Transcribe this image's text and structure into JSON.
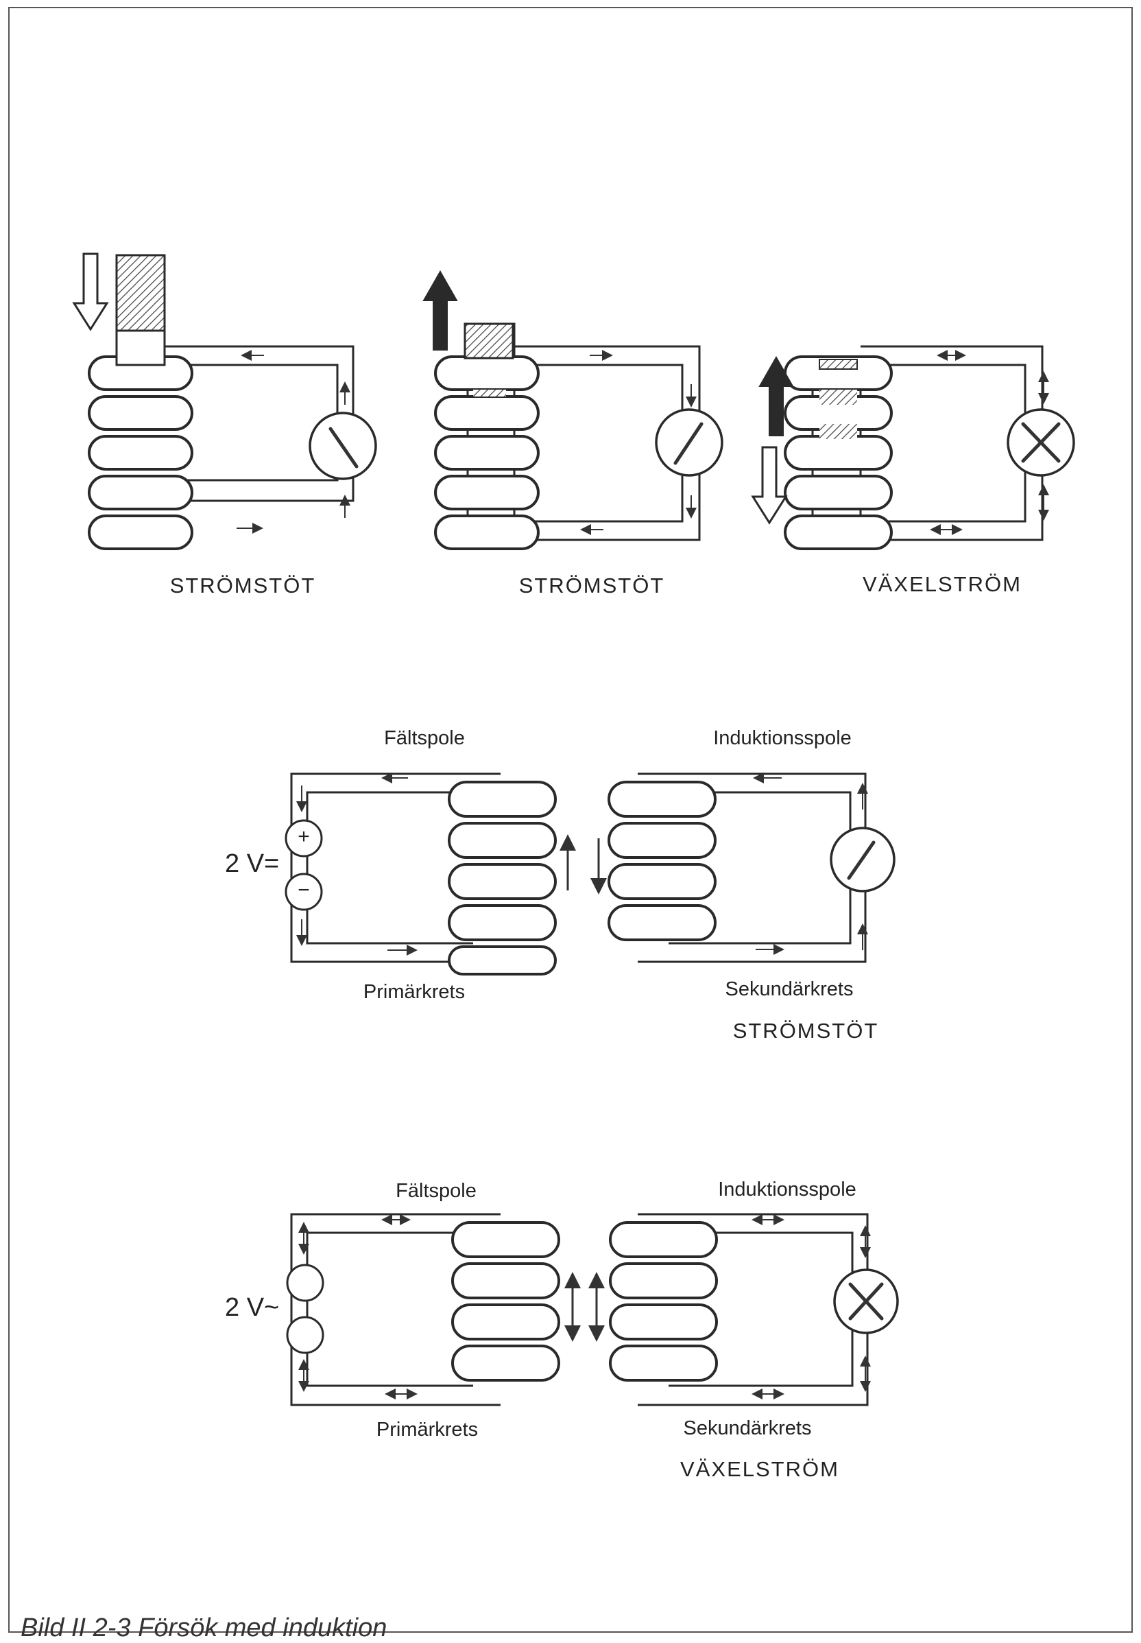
{
  "panels_top": {
    "label_1": "STRÖMSTÖT",
    "label_2": "STRÖMSTÖT",
    "label_3": "VÄXELSTRÖM"
  },
  "dc_experiment": {
    "field_coil_label": "Fältspole",
    "induction_coil_label": "Induktionsspole",
    "voltage_label": "2 V=",
    "primary_label": "Primärkrets",
    "secondary_label": "Sekundärkrets",
    "mode_label": "STRÖMSTÖT",
    "plus_sign": "+",
    "minus_sign": "−"
  },
  "ac_experiment": {
    "field_coil_label": "Fältspole",
    "induction_coil_label": "Induktionsspole",
    "voltage_label": "2 V~",
    "primary_label": "Primärkrets",
    "secondary_label": "Sekundärkrets",
    "mode_label": "VÄXELSTRÖM"
  },
  "caption": "Bild II 2-3  Försök med induktion",
  "colors": {
    "ink": "#2a2a2a",
    "hatch": "#555555",
    "frame": "#555555"
  }
}
